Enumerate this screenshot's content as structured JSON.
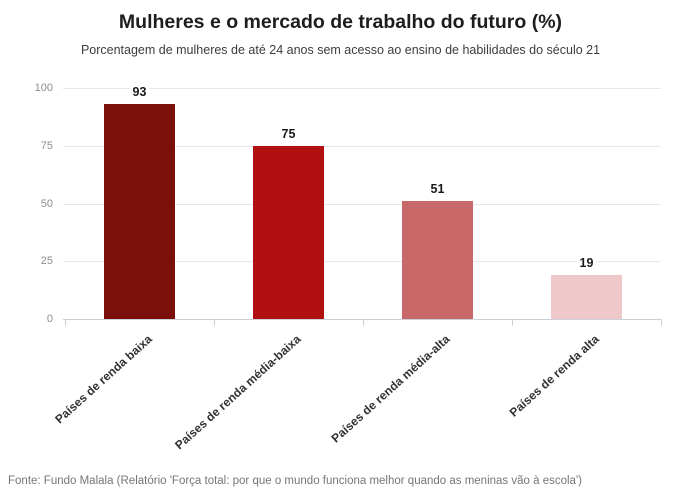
{
  "chart_data": {
    "type": "bar",
    "title": "Mulheres e o mercado de trabalho do futuro (%)",
    "subtitle": "Porcentagem de mulheres de até 24 anos sem acesso ao ensino de habilidades do século 21",
    "categories": [
      "Países de renda baixa",
      "Países de renda média-baixa",
      "Países de renda média-alta",
      "Países de renda alta"
    ],
    "values": [
      93,
      75,
      51,
      19
    ],
    "bar_colors": [
      "#7b100b",
      "#b01010",
      "#c96868",
      "#efc9c9"
    ],
    "xlabel": "",
    "ylabel": "",
    "ylim": [
      0,
      100
    ],
    "yticks": [
      0,
      25,
      50,
      75,
      100
    ],
    "grid": "horizontal",
    "legend": "none",
    "source": "Fonte: Fundo Malala (Relatório 'Força total: por que o mundo funciona melhor quando as meninas vão à escola')"
  },
  "colors": {
    "background": "#ffffff",
    "gridline": "#e7e7e7",
    "axis_line": "#ccd1d9",
    "y_tick_label": "#8e8e8e",
    "value_label": "#1a1a1a",
    "category_label": "#333333",
    "title": "#1d1d1d",
    "subtitle": "#3c3c3c",
    "source_text": "#767676"
  }
}
